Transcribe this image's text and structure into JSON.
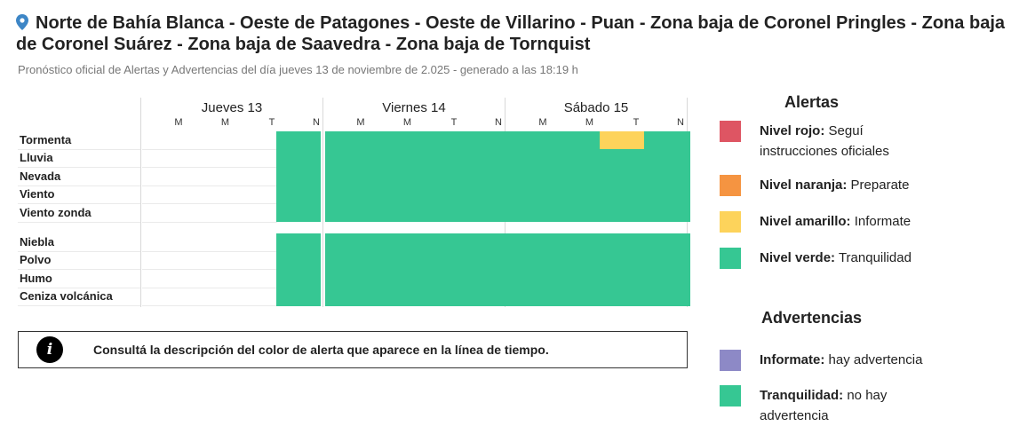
{
  "header": {
    "title": "Norte de Bahía Blanca - Oeste de Patagones - Oeste de Villarino - Puan - Zona baja de Coronel Pringles - Zona baja de Coronel Suárez - Zona baja de Saavedra - Zona baja de Tornquist",
    "subtitle": "Pronóstico oficial de Alertas y Advertencias del día jueves 13 de noviembre de 2.025 - generado a las 18:19 h",
    "pin_icon": "location-pin-icon"
  },
  "colors": {
    "rojo": "#de5563",
    "naranja": "#f59441",
    "amarillo": "#fdd35b",
    "verde": "#36c793",
    "violeta": "#8d89c6"
  },
  "timeline": {
    "days": [
      {
        "name": "Jueves 13",
        "slots": [
          "M",
          "M",
          "T",
          "N"
        ]
      },
      {
        "name": "Viernes 14",
        "slots": [
          "M",
          "M",
          "T",
          "N"
        ]
      },
      {
        "name": "Sábado 15",
        "slots": [
          "M",
          "M",
          "T",
          "N"
        ]
      }
    ],
    "groups": [
      {
        "rows": [
          {
            "label": "Tormenta",
            "levels": [
              null,
              null,
              null,
              "verde",
              "verde",
              "verde",
              "verde",
              "verde",
              "verde",
              "verde",
              "amarillo",
              "verde"
            ]
          },
          {
            "label": "Lluvia",
            "levels": [
              null,
              null,
              null,
              "verde",
              "verde",
              "verde",
              "verde",
              "verde",
              "verde",
              "verde",
              "verde",
              "verde"
            ]
          },
          {
            "label": "Nevada",
            "levels": [
              null,
              null,
              null,
              "verde",
              "verde",
              "verde",
              "verde",
              "verde",
              "verde",
              "verde",
              "verde",
              "verde"
            ]
          },
          {
            "label": "Viento",
            "levels": [
              null,
              null,
              null,
              "verde",
              "verde",
              "verde",
              "verde",
              "verde",
              "verde",
              "verde",
              "verde",
              "verde"
            ]
          },
          {
            "label": "Viento zonda",
            "levels": [
              null,
              null,
              null,
              "verde",
              "verde",
              "verde",
              "verde",
              "verde",
              "verde",
              "verde",
              "verde",
              "verde"
            ]
          }
        ]
      },
      {
        "rows": [
          {
            "label": "Niebla",
            "levels": [
              null,
              null,
              null,
              "verde",
              "verde",
              "verde",
              "verde",
              "verde",
              "verde",
              "verde",
              "verde",
              "verde"
            ]
          },
          {
            "label": "Polvo",
            "levels": [
              null,
              null,
              null,
              "verde",
              "verde",
              "verde",
              "verde",
              "verde",
              "verde",
              "verde",
              "verde",
              "verde"
            ]
          },
          {
            "label": "Humo",
            "levels": [
              null,
              null,
              null,
              "verde",
              "verde",
              "verde",
              "verde",
              "verde",
              "verde",
              "verde",
              "verde",
              "verde"
            ]
          },
          {
            "label": "Ceniza volcánica",
            "levels": [
              null,
              null,
              null,
              "verde",
              "verde",
              "verde",
              "verde",
              "verde",
              "verde",
              "verde",
              "verde",
              "verde"
            ]
          }
        ]
      }
    ]
  },
  "info": {
    "icon": "info-icon",
    "icon_glyph": "i",
    "text": "Consultá la descripción del color de alerta que aparece en la línea de tiempo."
  },
  "legend": {
    "alertas_title": "Alertas",
    "alertas": [
      {
        "name": "Nivel rojo:",
        "desc": " Seguí instrucciones oficiales",
        "color": "#de5563"
      },
      {
        "name": "Nivel naranja:",
        "desc": " Preparate",
        "color": "#f59441"
      },
      {
        "name": "Nivel amarillo:",
        "desc": " Informate",
        "color": "#fdd35b"
      },
      {
        "name": "Nivel verde:",
        "desc": " Tranquilidad",
        "color": "#36c793"
      }
    ],
    "advertencias_title": "Advertencias",
    "advertencias": [
      {
        "name": "Informate:",
        "desc": " hay advertencia",
        "color": "#8d89c6"
      },
      {
        "name": "Tranquilidad:",
        "desc": " no hay advertencia",
        "color": "#36c793"
      }
    ]
  }
}
